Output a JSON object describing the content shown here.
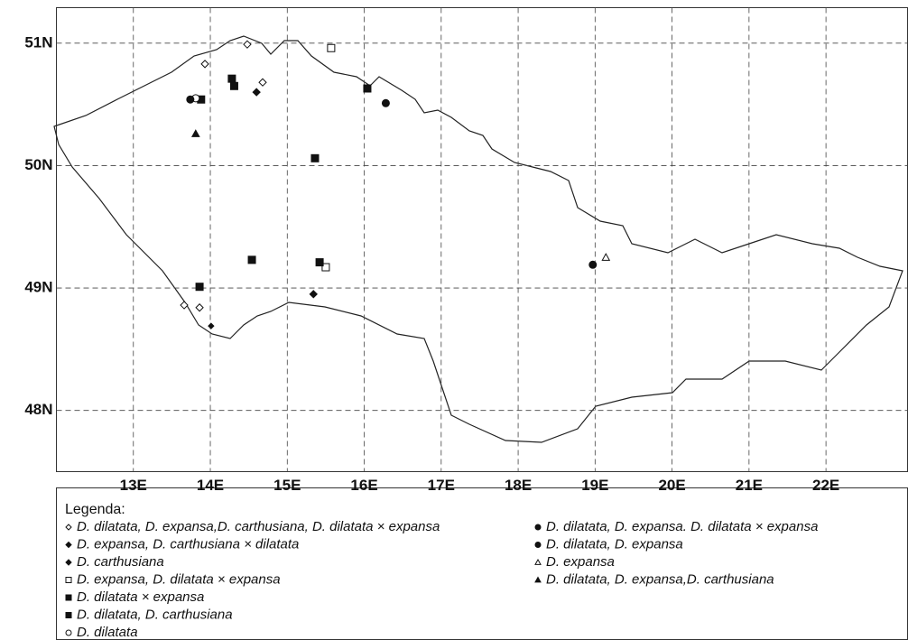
{
  "chart_data": {
    "type": "map",
    "xlim": [
      12,
      23.06
    ],
    "ylim": [
      47.5,
      51.29
    ],
    "xticks": [
      {
        "value": 13,
        "label": "13E"
      },
      {
        "value": 14,
        "label": "14E"
      },
      {
        "value": 15,
        "label": "15E"
      },
      {
        "value": 16,
        "label": "16E"
      },
      {
        "value": 17,
        "label": "17E"
      },
      {
        "value": 18,
        "label": "18E"
      },
      {
        "value": 19,
        "label": "19E"
      },
      {
        "value": 20,
        "label": "20E"
      },
      {
        "value": 21,
        "label": "21E"
      },
      {
        "value": 22,
        "label": "22E"
      }
    ],
    "yticks": [
      {
        "value": 48,
        "label": "48N"
      },
      {
        "value": 49,
        "label": "49N"
      },
      {
        "value": 50,
        "label": "50N"
      },
      {
        "value": 51,
        "label": "51N"
      }
    ],
    "grid": true,
    "legend_title": "Legenda:",
    "series": [
      {
        "name": "D. dilatata, D. expansa,D. carthusiana, D. dilatata × expansa",
        "marker": "diamond",
        "filled": false,
        "color": "#111",
        "x": [
          13.93,
          14.48,
          14.68,
          13.66,
          13.86
        ],
        "y": [
          50.83,
          50.99,
          50.68,
          48.86,
          48.84
        ]
      },
      {
        "name": "D. expansa, D. carthusiana × dilatata",
        "marker": "diamond",
        "filled": true,
        "color": "#111",
        "x": [
          14.6,
          15.34
        ],
        "y": [
          50.6,
          48.95
        ]
      },
      {
        "name": "D. carthusiana",
        "marker": "diamond",
        "filled": true,
        "color": "#111",
        "x": [
          14.01
        ],
        "y": [
          48.69
        ]
      },
      {
        "name": "D. expansa, D. dilatata × expansa",
        "marker": "square",
        "filled": false,
        "color": "#111",
        "x": [
          15.57,
          15.5
        ],
        "y": [
          50.96,
          49.17
        ]
      },
      {
        "name": "D. dilatata × expansa",
        "marker": "square",
        "filled": true,
        "color": "#111",
        "x": [
          14.28,
          15.36,
          14.54,
          13.86,
          15.42,
          16.04
        ],
        "y": [
          50.71,
          50.06,
          49.23,
          49.01,
          49.21,
          50.63
        ]
      },
      {
        "name": "D. dilatata, D. carthusiana",
        "marker": "square",
        "filled": true,
        "color": "#111",
        "x": [
          14.31,
          13.88
        ],
        "y": [
          50.65,
          50.54
        ]
      },
      {
        "name": "D. dilatata",
        "marker": "circle",
        "filled": false,
        "color": "#111",
        "x": [
          13.81
        ],
        "y": [
          50.55
        ]
      },
      {
        "name": "D. dilatata, D. expansa. D. dilatata × expansa",
        "marker": "circle",
        "filled": true,
        "color": "#111",
        "x": [
          13.74,
          16.28
        ],
        "y": [
          50.54,
          50.51
        ]
      },
      {
        "name": "D. dilatata, D. expansa",
        "marker": "circle",
        "filled": true,
        "color": "#111",
        "x": [
          18.97
        ],
        "y": [
          49.19
        ]
      },
      {
        "name": "D. expansa",
        "marker": "triangle",
        "filled": false,
        "color": "#111",
        "x": [
          19.14
        ],
        "y": [
          49.25
        ]
      },
      {
        "name": "D. dilatata, D. expansa,D. carthusiana",
        "marker": "triangle",
        "filled": true,
        "color": "#111",
        "x": [
          13.81
        ],
        "y": [
          50.26
        ]
      }
    ]
  }
}
